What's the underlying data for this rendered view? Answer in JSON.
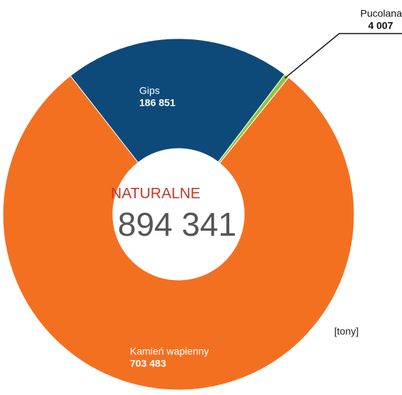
{
  "chart_data": {
    "type": "donut",
    "categories": [
      "Gips",
      "Pucolana",
      "Kamień wapienny"
    ],
    "values": [
      186851,
      4007,
      703483
    ],
    "value_labels": [
      "186 851",
      "4 007",
      "703 483"
    ],
    "colors": [
      "#0d4a7a",
      "#8dc63f",
      "#f37021"
    ],
    "center_title": "NATURALNE",
    "center_value": 894341,
    "center_value_label": "894 341",
    "unit": "[tony]"
  }
}
